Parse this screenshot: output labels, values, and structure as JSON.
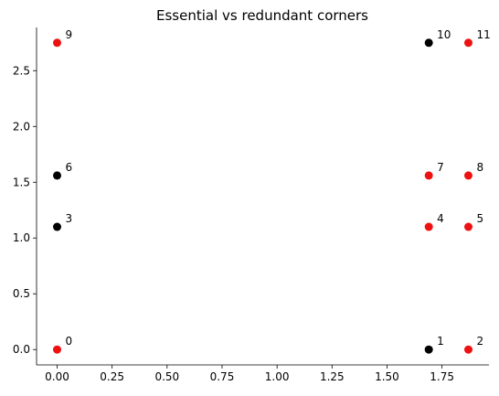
{
  "chart_data": {
    "type": "scatter",
    "title": "Essential vs redundant corners",
    "xlabel": "",
    "ylabel": "",
    "xlim": [
      -0.0935,
      1.9635
    ],
    "ylim": [
      -0.1375,
      2.8875
    ],
    "x_ticks": [
      0.0,
      0.25,
      0.5,
      0.75,
      1.0,
      1.25,
      1.5,
      1.75
    ],
    "x_tick_labels": [
      "0.00",
      "0.25",
      "0.50",
      "0.75",
      "1.00",
      "1.25",
      "1.50",
      "1.75"
    ],
    "y_ticks": [
      0.0,
      0.5,
      1.0,
      1.5,
      2.0,
      2.5
    ],
    "y_tick_labels": [
      "0.0",
      "0.5",
      "1.0",
      "1.5",
      "2.0",
      "2.5"
    ],
    "grid": false,
    "legend": "none",
    "colors": {
      "essential": "#000000",
      "redundant": "#ee1111"
    },
    "points": [
      {
        "label": "0",
        "x": 0.0,
        "y": 0.0,
        "kind": "redundant"
      },
      {
        "label": "1",
        "x": 1.69,
        "y": 0.0,
        "kind": "essential"
      },
      {
        "label": "2",
        "x": 1.87,
        "y": 0.0,
        "kind": "redundant"
      },
      {
        "label": "3",
        "x": 0.0,
        "y": 1.1,
        "kind": "essential"
      },
      {
        "label": "4",
        "x": 1.69,
        "y": 1.1,
        "kind": "redundant"
      },
      {
        "label": "5",
        "x": 1.87,
        "y": 1.1,
        "kind": "redundant"
      },
      {
        "label": "6",
        "x": 0.0,
        "y": 1.56,
        "kind": "essential"
      },
      {
        "label": "7",
        "x": 1.69,
        "y": 1.56,
        "kind": "redundant"
      },
      {
        "label": "8",
        "x": 1.87,
        "y": 1.56,
        "kind": "redundant"
      },
      {
        "label": "9",
        "x": 0.0,
        "y": 2.75,
        "kind": "redundant"
      },
      {
        "label": "10",
        "x": 1.69,
        "y": 2.75,
        "kind": "essential"
      },
      {
        "label": "11",
        "x": 1.87,
        "y": 2.75,
        "kind": "redundant"
      }
    ]
  }
}
